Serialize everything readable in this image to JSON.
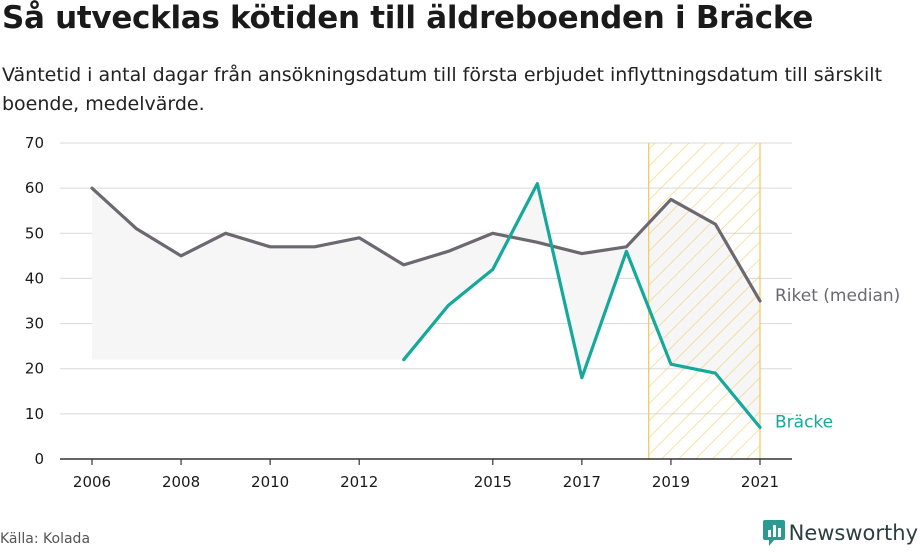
{
  "header": {
    "title": "Så utvecklas kötiden till äldreboenden i Bräcke",
    "subtitle": "Väntetid i antal dagar från ansökningsdatum till första erbjudet inflyttningsdatum till särskilt boende, medelvärde."
  },
  "footer": {
    "source": "Källa: Kolada",
    "brand": "Newsworthy"
  },
  "colors": {
    "riket": "#6b6870",
    "bracke": "#14a99b",
    "grid": "#d9d9d9",
    "band_fill": "#f6f6f6",
    "highlight": "#f3c75b"
  },
  "icons": [
    "newsworthy-logo-icon"
  ],
  "chart_data": {
    "type": "line",
    "x_tick_labels": [
      "2006",
      "2008",
      "2010",
      "2012",
      "2015",
      "2017",
      "2019",
      "2021"
    ],
    "y_ticks": [
      0,
      10,
      20,
      30,
      40,
      50,
      60,
      70
    ],
    "ylim": [
      0,
      70
    ],
    "xlim": [
      2006,
      2021
    ],
    "grid": true,
    "highlight_range": [
      2018.5,
      2021
    ],
    "series": [
      {
        "name": "Riket (median)",
        "x": [
          2006,
          2007,
          2008,
          2009,
          2010,
          2011,
          2012,
          2013,
          2014,
          2015,
          2016,
          2017,
          2018,
          2019,
          2020,
          2021
        ],
        "values": [
          60,
          51,
          45,
          50,
          47,
          47,
          49,
          43,
          46,
          50,
          48,
          45.5,
          47,
          57.5,
          52,
          35
        ]
      },
      {
        "name": "Bräcke",
        "x": [
          2013,
          2014,
          2015,
          2016,
          2017,
          2018,
          2019,
          2020,
          2021
        ],
        "values": [
          22,
          34,
          42,
          61,
          18,
          46,
          21,
          19,
          7
        ]
      }
    ]
  }
}
